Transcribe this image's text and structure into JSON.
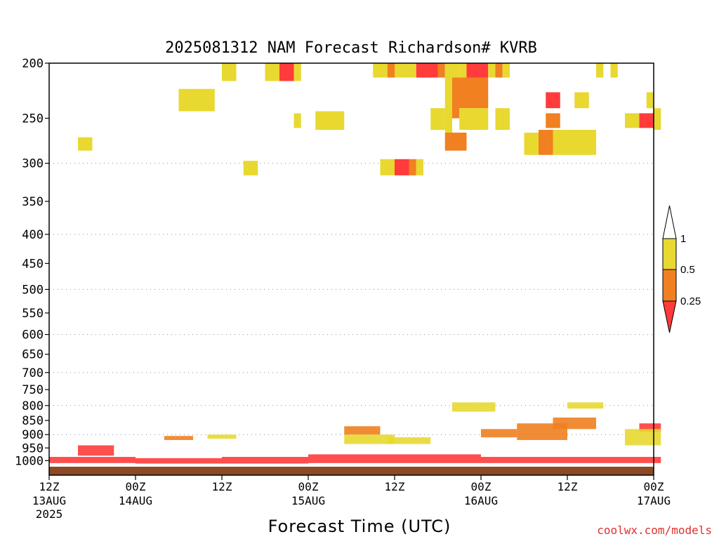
{
  "chart_data": {
    "type": "heatmap",
    "title": "2025081312 NAM Forecast Richardson# KVRB",
    "xlabel": "Forecast Time (UTC)",
    "ylabel": "",
    "y_scale": "log-pressure (inverted)",
    "ylim": [
      1025,
      200
    ],
    "x_ticks": [
      {
        "h": 0,
        "top": "12Z",
        "bottom": "13AUG",
        "extra": "2025"
      },
      {
        "h": 12,
        "top": "00Z",
        "bottom": "14AUG",
        "extra": ""
      },
      {
        "h": 24,
        "top": "12Z",
        "bottom": "",
        "extra": ""
      },
      {
        "h": 36,
        "top": "00Z",
        "bottom": "15AUG",
        "extra": ""
      },
      {
        "h": 48,
        "top": "12Z",
        "bottom": "",
        "extra": ""
      },
      {
        "h": 60,
        "top": "00Z",
        "bottom": "16AUG",
        "extra": ""
      },
      {
        "h": 72,
        "top": "12Z",
        "bottom": "",
        "extra": ""
      },
      {
        "h": 84,
        "top": "00Z",
        "bottom": "17AUG",
        "extra": ""
      }
    ],
    "y_ticks": [
      200,
      250,
      300,
      350,
      400,
      450,
      500,
      550,
      600,
      650,
      700,
      750,
      800,
      850,
      900,
      950,
      1000
    ],
    "gridlines_at": [
      300,
      400,
      500,
      600,
      700,
      800,
      900
    ],
    "grid": "dotted horizontal",
    "legend": {
      "placement": "right",
      "levels": [
        "0.25",
        "0.5",
        "1"
      ],
      "colors": {
        "below_0.25": "#ff3b3b",
        "0.25_0.5": "#f08020",
        "0.5_1": "#e8d830",
        "above_1": "#ffffff"
      }
    },
    "ground_color": "#8b4a24",
    "cells": [
      [
        24,
        26,
        200,
        215,
        0.75
      ],
      [
        30,
        32,
        200,
        215,
        0.75
      ],
      [
        32,
        34,
        200,
        215,
        0.1
      ],
      [
        34,
        35,
        200,
        215,
        0.75
      ],
      [
        19,
        22,
        225,
        240,
        0.35
      ],
      [
        18,
        23,
        222,
        243,
        0.75
      ],
      [
        4,
        6,
        270,
        285,
        0.75
      ],
      [
        27,
        29,
        297,
        315,
        0.75
      ],
      [
        34,
        35,
        245,
        260,
        0.75
      ],
      [
        38,
        40,
        243,
        258,
        0.35
      ],
      [
        37,
        41,
        243,
        262,
        0.75
      ],
      [
        45,
        47,
        200,
        212,
        0.75
      ],
      [
        47,
        48,
        200,
        212,
        0.35
      ],
      [
        48,
        51,
        200,
        212,
        0.75
      ],
      [
        51,
        54,
        200,
        212,
        0.1
      ],
      [
        54,
        55,
        200,
        212,
        0.35
      ],
      [
        55,
        57,
        200,
        212,
        0.75
      ],
      [
        57,
        60,
        200,
        212,
        0.75
      ],
      [
        58,
        61,
        200,
        212,
        0.1
      ],
      [
        61,
        62,
        200,
        212,
        0.75
      ],
      [
        62,
        63,
        200,
        212,
        0.35
      ],
      [
        63,
        64,
        200,
        212,
        0.75
      ],
      [
        55,
        56,
        212,
        265,
        0.75
      ],
      [
        56,
        57,
        215,
        250,
        0.35
      ],
      [
        56,
        61,
        212,
        240,
        0.35
      ],
      [
        57,
        61,
        240,
        262,
        0.75
      ],
      [
        53,
        55,
        240,
        262,
        0.75
      ],
      [
        55,
        58,
        265,
        285,
        0.35
      ],
      [
        62,
        64,
        240,
        262,
        0.75
      ],
      [
        46,
        48,
        295,
        315,
        0.75
      ],
      [
        48,
        50,
        295,
        315,
        0.1
      ],
      [
        50,
        51,
        295,
        315,
        0.35
      ],
      [
        51,
        52,
        295,
        315,
        0.75
      ],
      [
        69,
        71,
        225,
        240,
        0.1
      ],
      [
        69,
        71,
        245,
        260,
        0.35
      ],
      [
        68,
        70,
        262,
        290,
        0.35
      ],
      [
        66,
        68,
        265,
        290,
        0.75
      ],
      [
        70,
        76,
        262,
        290,
        0.75
      ],
      [
        73,
        75,
        225,
        240,
        0.75
      ],
      [
        82,
        84,
        245,
        260,
        0.1
      ],
      [
        80,
        82,
        245,
        260,
        0.75
      ],
      [
        84,
        85,
        240,
        262,
        0.75
      ],
      [
        83,
        84,
        225,
        240,
        0.75
      ],
      [
        76,
        77,
        200,
        212,
        0.75
      ],
      [
        78,
        79,
        200,
        212,
        0.75
      ]
    ],
    "boundary_layer_bands": [
      [
        0,
        12,
        985,
        1010,
        0.1
      ],
      [
        12,
        24,
        990,
        1012,
        0.1
      ],
      [
        24,
        36,
        985,
        1012,
        0.1
      ],
      [
        36,
        48,
        975,
        1010,
        0.1
      ],
      [
        48,
        60,
        975,
        1010,
        0.1
      ],
      [
        60,
        72,
        985,
        1010,
        0.1
      ],
      [
        72,
        85,
        985,
        1010,
        0.1
      ],
      [
        4,
        9,
        940,
        980,
        0.1
      ],
      [
        16,
        20,
        905,
        920,
        0.35
      ],
      [
        22,
        26,
        900,
        915,
        0.75
      ],
      [
        41,
        46,
        870,
        900,
        0.35
      ],
      [
        41,
        48,
        900,
        935,
        0.75
      ],
      [
        47,
        53,
        910,
        935,
        0.75
      ],
      [
        60,
        65,
        880,
        910,
        0.35
      ],
      [
        65,
        72,
        860,
        920,
        0.35
      ],
      [
        70,
        76,
        840,
        880,
        0.35
      ],
      [
        72,
        77,
        790,
        810,
        0.75
      ],
      [
        56,
        62,
        790,
        820,
        0.75
      ],
      [
        82,
        85,
        860,
        890,
        0.1
      ],
      [
        80,
        85,
        880,
        940,
        0.75
      ]
    ]
  },
  "credit": "coolwx.com/models"
}
